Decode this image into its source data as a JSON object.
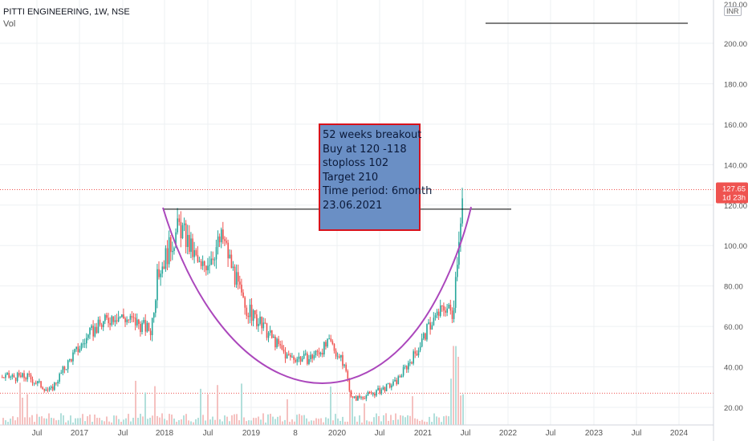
{
  "header": {
    "title": "PITTI ENGINEERING, 1W, NSE",
    "volume_label": "Vol",
    "currency": "INR"
  },
  "note": {
    "lines": [
      "52 weeks breakout",
      "Buy at 120 -118",
      "stoploss 102",
      "Target 210",
      "Time period: 6month",
      "",
      "23.06.2021"
    ]
  },
  "price_tag": {
    "price": "127.65",
    "countdown": "1d 23h"
  },
  "colors": {
    "up": "#26a69a",
    "down": "#ef5350",
    "cup": "#ab47bc",
    "note_bg": "#6a8fc5",
    "note_border": "#d8111b",
    "price_line": "#ef5350",
    "volume": "#9e9e9e"
  },
  "chart_data": {
    "type": "line",
    "title": "PITTI ENGINEERING, 1W, NSE",
    "y_axis": {
      "range": [
        16,
        220
      ],
      "ticks": [
        "20.00",
        "40.00",
        "60.00",
        "80.00",
        "100.00",
        "120.00",
        "140.00",
        "160.00",
        "180.00",
        "200.00",
        "210.00"
      ]
    },
    "x_axis": {
      "ticks": [
        "Jul",
        "2017",
        "Jul",
        "2018",
        "Jul",
        "2019",
        "8",
        "2020",
        "Jul",
        "2021",
        "Jul",
        "2022",
        "Jul",
        "2023",
        "Jul",
        "2024"
      ]
    },
    "series": [
      {
        "x": [
          "2016-06",
          "2016-09",
          "2016-12",
          "2017-03",
          "2017-06",
          "2017-09",
          "2017-11",
          "2017-12",
          "2018-03",
          "2018-06",
          "2018-09",
          "2018-12",
          "2019-03",
          "2019-06",
          "2019-09",
          "2019-12",
          "2020-02",
          "2020-03",
          "2020-06",
          "2020-09",
          "2020-12",
          "2021-02",
          "2021-04",
          "2021-05",
          "2021-06",
          "2021-06-20",
          "2021-06-27"
        ],
        "values": [
          35,
          28,
          45,
          58,
          66,
          62,
          58,
          86,
          110,
          88,
          104,
          70,
          58,
          45,
          44,
          52,
          40,
          24,
          27,
          32,
          48,
          62,
          70,
          66,
          112,
          133,
          127.65
        ]
      }
    ],
    "levels": {
      "current_price": 127.65,
      "breakout_resistance": 118,
      "target": 210,
      "low_support": 27
    },
    "annotations": [
      "cup pattern",
      "52 weeks breakout"
    ]
  }
}
